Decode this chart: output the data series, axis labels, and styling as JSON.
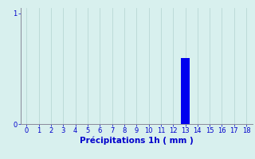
{
  "title": "",
  "xlabel": "Précipitations 1h ( mm )",
  "ylabel": "",
  "background_color": "#d8f0ee",
  "bar_positions": [
    13
  ],
  "bar_heights": [
    0.6
  ],
  "bar_color": "#0000ee",
  "bar_width": 0.7,
  "xlim": [
    -0.5,
    18.5
  ],
  "ylim": [
    0,
    1.05
  ],
  "xticks": [
    0,
    1,
    2,
    3,
    4,
    5,
    6,
    7,
    8,
    9,
    10,
    11,
    12,
    13,
    14,
    15,
    16,
    17,
    18
  ],
  "yticks": [
    0,
    1
  ],
  "yticklabels": [
    "0",
    "1"
  ],
  "grid_color": "#b8d8d4",
  "tick_color": "#0000cc",
  "label_color": "#0000cc",
  "spine_color": "#888899",
  "tick_fontsize": 6,
  "xlabel_fontsize": 7.5,
  "xlabel_bold": true
}
